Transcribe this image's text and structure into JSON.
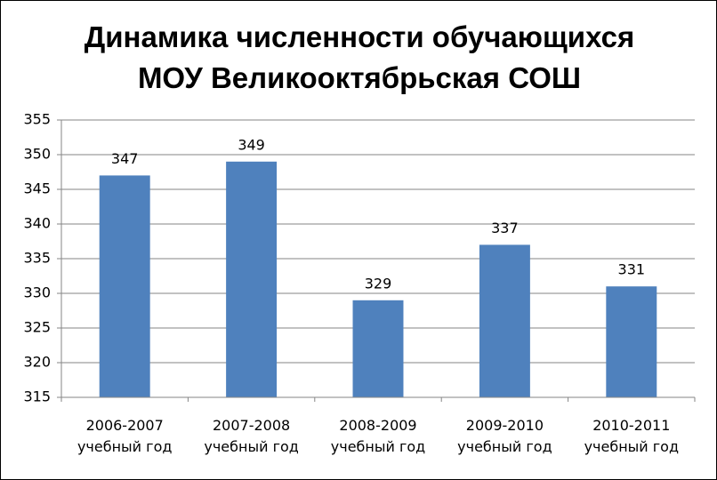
{
  "chart_data": {
    "type": "bar",
    "title": "Динамика численности обучающихся\nМОУ Великооктябрьская СОШ",
    "categories": [
      "2006-2007\nучебный год",
      "2007-2008\nучебный год",
      "2008-2009\nучебный год",
      "2009-2010\nучебный год",
      "2010-2011\nучебный год"
    ],
    "values": [
      347,
      349,
      329,
      337,
      331
    ],
    "color": "#4f81bd",
    "ylim": [
      315,
      355
    ],
    "yticks": [
      315,
      320,
      325,
      330,
      335,
      340,
      345,
      350,
      355
    ],
    "grid": true
  }
}
